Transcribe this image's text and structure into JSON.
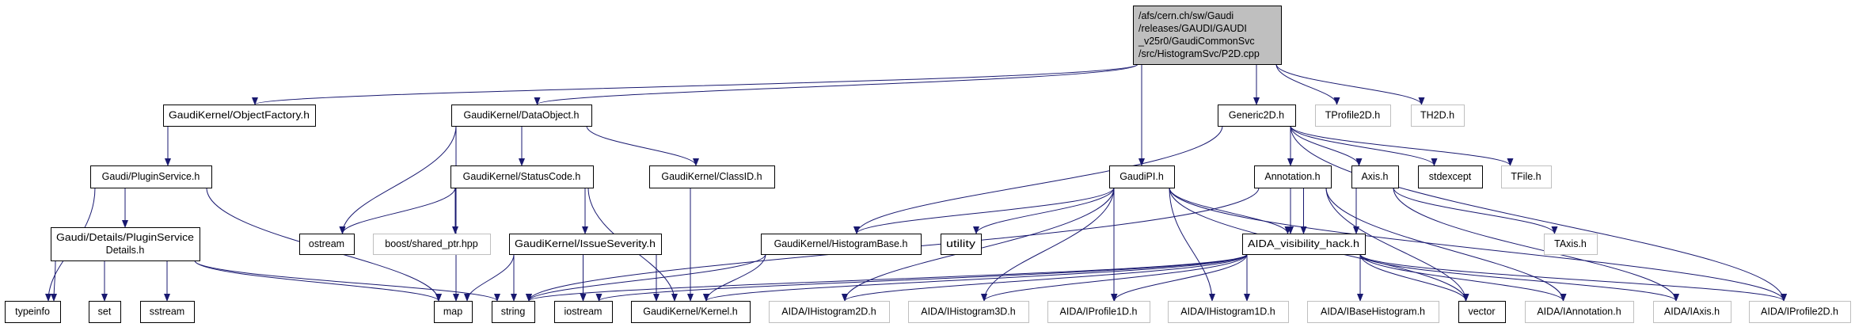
{
  "colors": {
    "edge": "#191970",
    "current_fill": "#bfbfbf",
    "node_border": "#000000",
    "external_border": "#bfbfbf",
    "external_text": "#000000"
  },
  "nodes": [
    {
      "id": "main",
      "lines": [
        "/afs/cern.ch/sw/Gaudi",
        "/releases/GAUDI/GAUDI",
        "_v25r0/GaudiCommonSvc",
        "/src/HistogramSvc/P2D.cpp"
      ],
      "kind": "current"
    },
    {
      "id": "objfactory",
      "lines": [
        "GaudiKernel/ObjectFactory.h"
      ],
      "kind": "normal"
    },
    {
      "id": "dataobject",
      "lines": [
        "GaudiKernel/DataObject.h"
      ],
      "kind": "normal"
    },
    {
      "id": "generic2d",
      "lines": [
        "Generic2D.h"
      ],
      "kind": "normal"
    },
    {
      "id": "tprofile2d",
      "lines": [
        "TProfile2D.h"
      ],
      "kind": "external"
    },
    {
      "id": "th2d",
      "lines": [
        "TH2D.h"
      ],
      "kind": "external"
    },
    {
      "id": "pluginservice",
      "lines": [
        "Gaudi/PluginService.h"
      ],
      "kind": "normal"
    },
    {
      "id": "statuscode",
      "lines": [
        "GaudiKernel/StatusCode.h"
      ],
      "kind": "normal"
    },
    {
      "id": "classid",
      "lines": [
        "GaudiKernel/ClassID.h"
      ],
      "kind": "normal"
    },
    {
      "id": "gaudipi",
      "lines": [
        "GaudiPI.h"
      ],
      "kind": "normal"
    },
    {
      "id": "annotation",
      "lines": [
        "Annotation.h"
      ],
      "kind": "normal"
    },
    {
      "id": "axis",
      "lines": [
        "Axis.h"
      ],
      "kind": "normal"
    },
    {
      "id": "stdexcept",
      "lines": [
        "stdexcept"
      ],
      "kind": "normal"
    },
    {
      "id": "tfile",
      "lines": [
        "TFile.h"
      ],
      "kind": "external"
    },
    {
      "id": "pluginsvcdetails",
      "lines": [
        "Gaudi/Details/PluginService",
        "Details.h"
      ],
      "kind": "normal"
    },
    {
      "id": "ostream",
      "lines": [
        "ostream"
      ],
      "kind": "normal"
    },
    {
      "id": "boostsharedptr",
      "lines": [
        "boost/shared_ptr.hpp"
      ],
      "kind": "external"
    },
    {
      "id": "issueseverity",
      "lines": [
        "GaudiKernel/IssueSeverity.h"
      ],
      "kind": "normal"
    },
    {
      "id": "histogrambase",
      "lines": [
        "GaudiKernel/HistogramBase.h"
      ],
      "kind": "normal"
    },
    {
      "id": "utility",
      "lines": [
        "utility"
      ],
      "kind": "normal"
    },
    {
      "id": "aidavis",
      "lines": [
        "AIDA_visibility_hack.h"
      ],
      "kind": "normal"
    },
    {
      "id": "taxis",
      "lines": [
        "TAxis.h"
      ],
      "kind": "external"
    },
    {
      "id": "typeinfo",
      "lines": [
        "typeinfo"
      ],
      "kind": "normal"
    },
    {
      "id": "set",
      "lines": [
        "set"
      ],
      "kind": "normal"
    },
    {
      "id": "sstream",
      "lines": [
        "sstream"
      ],
      "kind": "normal"
    },
    {
      "id": "map",
      "lines": [
        "map"
      ],
      "kind": "normal"
    },
    {
      "id": "string",
      "lines": [
        "string"
      ],
      "kind": "normal"
    },
    {
      "id": "iostream",
      "lines": [
        "iostream"
      ],
      "kind": "normal"
    },
    {
      "id": "kernel",
      "lines": [
        "GaudiKernel/Kernel.h"
      ],
      "kind": "normal"
    },
    {
      "id": "ihisto2d",
      "lines": [
        "AIDA/IHistogram2D.h"
      ],
      "kind": "external"
    },
    {
      "id": "ihisto3d",
      "lines": [
        "AIDA/IHistogram3D.h"
      ],
      "kind": "external"
    },
    {
      "id": "iprofile1d",
      "lines": [
        "AIDA/IProfile1D.h"
      ],
      "kind": "external"
    },
    {
      "id": "ihisto1d",
      "lines": [
        "AIDA/IHistogram1D.h"
      ],
      "kind": "external"
    },
    {
      "id": "ibasehisto",
      "lines": [
        "AIDA/IBaseHistogram.h"
      ],
      "kind": "external"
    },
    {
      "id": "vector",
      "lines": [
        "vector"
      ],
      "kind": "normal"
    },
    {
      "id": "iannotation",
      "lines": [
        "AIDA/IAnnotation.h"
      ],
      "kind": "external"
    },
    {
      "id": "iaxis",
      "lines": [
        "AIDA/IAxis.h"
      ],
      "kind": "external"
    },
    {
      "id": "iprofile2d",
      "lines": [
        "AIDA/IProfile2D.h"
      ],
      "kind": "external"
    }
  ],
  "edges": [
    [
      "main",
      "objfactory"
    ],
    [
      "main",
      "dataobject"
    ],
    [
      "main",
      "gaudipi"
    ],
    [
      "main",
      "generic2d"
    ],
    [
      "main",
      "tprofile2d"
    ],
    [
      "main",
      "th2d"
    ],
    [
      "objfactory",
      "pluginservice"
    ],
    [
      "pluginservice",
      "typeinfo"
    ],
    [
      "pluginservice",
      "pluginsvcdetails"
    ],
    [
      "pluginservice",
      "map"
    ],
    [
      "pluginsvcdetails",
      "typeinfo"
    ],
    [
      "pluginsvcdetails",
      "set"
    ],
    [
      "pluginsvcdetails",
      "sstream"
    ],
    [
      "pluginsvcdetails",
      "map"
    ],
    [
      "pluginsvcdetails",
      "string"
    ],
    [
      "dataobject",
      "map"
    ],
    [
      "dataobject",
      "ostream"
    ],
    [
      "dataobject",
      "statuscode"
    ],
    [
      "dataobject",
      "classid"
    ],
    [
      "statuscode",
      "ostream"
    ],
    [
      "statuscode",
      "boostsharedptr"
    ],
    [
      "statuscode",
      "issueseverity"
    ],
    [
      "statuscode",
      "kernel"
    ],
    [
      "issueseverity",
      "map"
    ],
    [
      "issueseverity",
      "string"
    ],
    [
      "issueseverity",
      "iostream"
    ],
    [
      "issueseverity",
      "kernel"
    ],
    [
      "classid",
      "kernel"
    ],
    [
      "histogrambase",
      "string"
    ],
    [
      "histogrambase",
      "kernel"
    ],
    [
      "generic2d",
      "histogrambase"
    ],
    [
      "generic2d",
      "aidavis"
    ],
    [
      "generic2d",
      "annotation"
    ],
    [
      "generic2d",
      "axis"
    ],
    [
      "generic2d",
      "stdexcept"
    ],
    [
      "generic2d",
      "tfile"
    ],
    [
      "generic2d",
      "iprofile2d"
    ],
    [
      "gaudipi",
      "histogrambase"
    ],
    [
      "gaudipi",
      "utility"
    ],
    [
      "gaudipi",
      "ihisto2d"
    ],
    [
      "gaudipi",
      "ihisto3d"
    ],
    [
      "gaudipi",
      "iprofile1d"
    ],
    [
      "gaudipi",
      "ihisto1d"
    ],
    [
      "gaudipi",
      "aidavis"
    ],
    [
      "gaudipi",
      "vector"
    ],
    [
      "gaudipi",
      "iprofile2d"
    ],
    [
      "annotation",
      "string"
    ],
    [
      "annotation",
      "aidavis"
    ],
    [
      "annotation",
      "vector"
    ],
    [
      "annotation",
      "iannotation"
    ],
    [
      "axis",
      "aidavis"
    ],
    [
      "axis",
      "taxis"
    ],
    [
      "axis",
      "iaxis"
    ],
    [
      "aidavis",
      "string"
    ],
    [
      "aidavis",
      "iostream"
    ],
    [
      "aidavis",
      "kernel"
    ],
    [
      "aidavis",
      "ihisto2d"
    ],
    [
      "aidavis",
      "ihisto3d"
    ],
    [
      "aidavis",
      "iprofile1d"
    ],
    [
      "aidavis",
      "ihisto1d"
    ],
    [
      "aidavis",
      "ibasehisto"
    ],
    [
      "aidavis",
      "vector"
    ],
    [
      "aidavis",
      "iannotation"
    ],
    [
      "aidavis",
      "iaxis"
    ],
    [
      "aidavis",
      "iprofile2d"
    ]
  ]
}
